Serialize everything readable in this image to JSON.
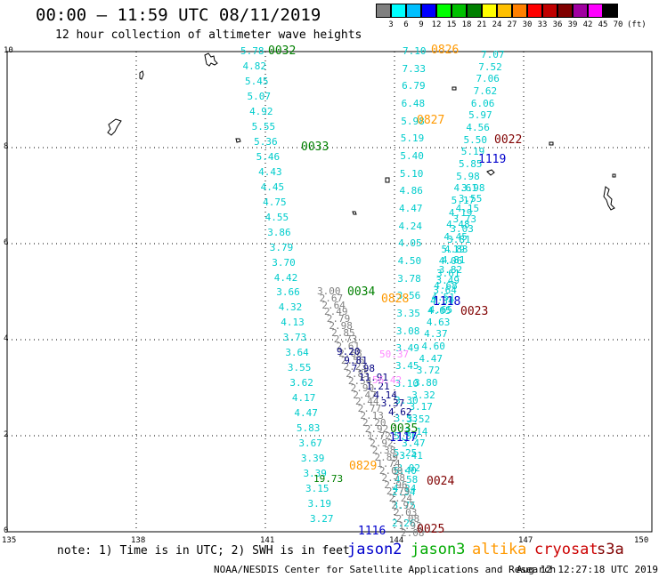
{
  "header": {
    "title": "00:00 – 11:59 UTC 08/11/2019",
    "subtitle": "12 hour collection of altimeter wave heights"
  },
  "colorscale": {
    "labels": [
      "3",
      "6",
      "9",
      "12",
      "15",
      "18",
      "21",
      "24",
      "27",
      "30",
      "33",
      "36",
      "39",
      "42",
      "45",
      "70"
    ],
    "colors": [
      "#808080",
      "#00ffff",
      "#00bfff",
      "#0000ff",
      "#00ff00",
      "#00c000",
      "#008000",
      "#ffff00",
      "#ffc000",
      "#ff8000",
      "#ff0000",
      "#c00000",
      "#800000",
      "#a000a0",
      "#ff00ff",
      "#000000"
    ],
    "unit": "(ft)"
  },
  "axes": {
    "x_ticks": [
      "135",
      "138",
      "141",
      "144",
      "147",
      "150"
    ],
    "y_ticks": [
      "0",
      "2",
      "4",
      "6",
      "8",
      "10"
    ]
  },
  "passes": [
    {
      "id": "p0032",
      "label": "0032",
      "color": "#008000"
    },
    {
      "id": "p0826",
      "label": "0826",
      "color": "#ff9900"
    },
    {
      "id": "p0827",
      "label": "0827",
      "color": "#ff9900"
    },
    {
      "id": "p0022",
      "label": "0022",
      "color": "#800000"
    },
    {
      "id": "p1119",
      "label": "1119",
      "color": "#0000cc"
    },
    {
      "id": "p0033",
      "label": "0033",
      "color": "#008000"
    },
    {
      "id": "p0034",
      "label": "0034",
      "color": "#008000"
    },
    {
      "id": "p0828",
      "label": "0828",
      "color": "#ff9900"
    },
    {
      "id": "p1118",
      "label": "1118",
      "color": "#0000cc"
    },
    {
      "id": "p0023",
      "label": "0023",
      "color": "#800000"
    },
    {
      "id": "p0035",
      "label": "0035",
      "color": "#008000"
    },
    {
      "id": "p1117",
      "label": "1117",
      "color": "#0000cc"
    },
    {
      "id": "p0829",
      "label": "0829",
      "color": "#ff9900"
    },
    {
      "id": "p0024",
      "label": "0024",
      "color": "#800000"
    },
    {
      "id": "p1116",
      "label": "1116",
      "color": "#0000cc"
    },
    {
      "id": "p0025",
      "label": "0025",
      "color": "#800000"
    }
  ],
  "tracks": [
    {
      "name": "jason3-left",
      "color": "#00cccc",
      "values": [
        "5.78",
        "4.82",
        "5.45",
        "5.07",
        "4.92",
        "5.55",
        "5.36",
        "5.46",
        "4.43",
        "4.45",
        "4.75",
        "4.55",
        "3.86",
        "3.79",
        "3.70",
        "4.42",
        "3.66",
        "4.32",
        "4.13",
        "3.73",
        "3.64",
        "3.55",
        "3.62",
        "4.17",
        "4.47",
        "5.83",
        "3.67",
        "3.39",
        "3.39",
        "3.15",
        "3.19",
        "3.27"
      ]
    },
    {
      "name": "altika-center",
      "color": "#00cccc",
      "values": [
        "7.10",
        "7.33",
        "6.79",
        "6.48",
        "5.98",
        "5.19",
        "5.40",
        "5.10",
        "4.86",
        "4.47",
        "4.24",
        "4.05",
        "4.50",
        "3.78",
        "3.56",
        "3.35",
        "3.08",
        "3.49",
        "3.45",
        "3.10",
        "3.30",
        "3.53",
        "5.86",
        "5.25",
        "5.40",
        "4.24",
        "3.75",
        "2.26"
      ]
    },
    {
      "name": "jason3-right",
      "color": "#00cccc",
      "values": [
        "7.07",
        "7.52",
        "7.06",
        "7.62",
        "6.06",
        "5.97",
        "4.56",
        "5.50",
        "5.19",
        "5.85",
        "5.98",
        "4.61",
        "5.17",
        "4.19",
        "4.48",
        "4.45",
        "5.19",
        "4.06",
        "3.61",
        "4.68",
        "4.51",
        "4.65",
        "4.63",
        "4.37",
        "4.60",
        "4.47",
        "3.72",
        "3.80",
        "3.32",
        "3.17",
        "3.52",
        "3.14",
        "3.47",
        "3.41",
        "3.02",
        "4.58",
        "2.34"
      ]
    },
    {
      "name": "jason3-right-b",
      "color": "#00cccc",
      "values": [
        "3.98",
        "3.55",
        "4.15",
        "3.73",
        "3.03",
        "3.81",
        "4.83",
        "4.81",
        "3.82",
        "3.49",
        "3.64",
        "4.34",
        "4.05"
      ]
    },
    {
      "name": "grey-values",
      "color": "#808080",
      "values": [
        "3.00",
        "2.67",
        "2.64",
        "2.49",
        "2.79",
        "2.98",
        "2.85",
        "2.73",
        "2.61",
        "2.68",
        "2.56",
        "2.23",
        "2.85",
        "2.54",
        "2.90",
        "2.47",
        "2.44",
        "2.77",
        "2.13",
        "2.20",
        "2.92",
        "1.72",
        "2.92",
        "2.38",
        "2.89",
        "1.74",
        "2.00",
        "2.78",
        "2.96",
        "2.79",
        "2.24",
        "2.92",
        "2.03",
        "2.08",
        "1.92",
        "2.08"
      ]
    },
    {
      "name": "special",
      "color": "#000080",
      "values": [
        "9.20",
        "9.81",
        "7.98",
        "11.91",
        "1.21",
        "4.14",
        "3.37",
        "4.62"
      ]
    }
  ],
  "special_labels": [
    {
      "text": "50.37",
      "color": "#ff88ff"
    },
    {
      "text": "56.42",
      "color": "#ff88ff"
    },
    {
      "text": "19.73",
      "color": "#008000"
    }
  ],
  "legend": {
    "note": "note: 1) Time is in UTC; 2) SWH is in feet",
    "sats": [
      {
        "name": "jason2",
        "color": "#0000cc"
      },
      {
        "name": "jason3",
        "color": "#00aa00"
      },
      {
        "name": "altika",
        "color": "#ff9900"
      },
      {
        "name": "cryosat",
        "color": "#cc0000"
      },
      {
        "name": "s3a",
        "color": "#800000"
      }
    ]
  },
  "footer": {
    "org": "NOAA/NESDIS Center for Satellite Applications and Research",
    "timestamp": "Aug 12 12:27:18 UTC 2019"
  }
}
